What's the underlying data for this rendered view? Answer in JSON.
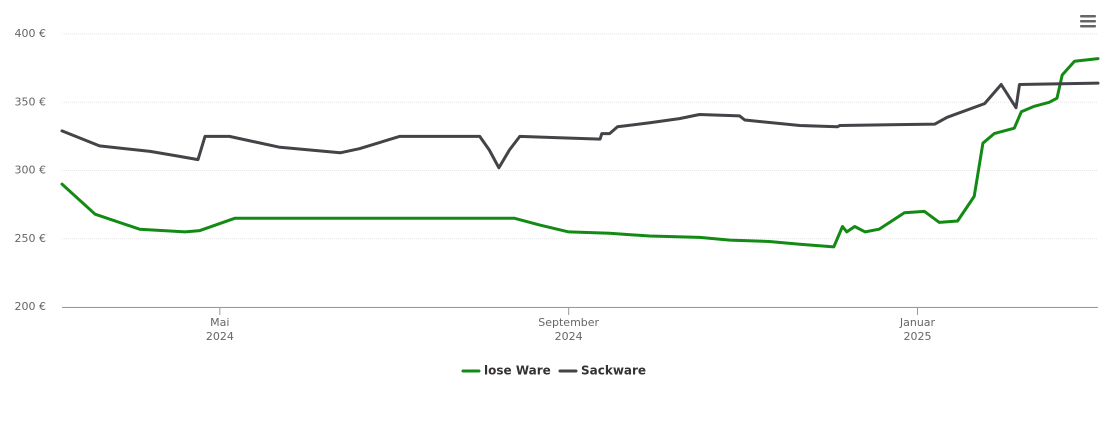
{
  "chart_data": {
    "type": "line",
    "xlim": [
      2.19,
      14.07
    ],
    "xticks": [
      {
        "value": 4,
        "label": "Mai\n2024"
      },
      {
        "value": 8,
        "label": "September\n2024"
      },
      {
        "value": 12,
        "label": "Januar\n2025"
      }
    ],
    "ylim": [
      200,
      400
    ],
    "yticks": [
      {
        "value": 200,
        "label": "200 €"
      },
      {
        "value": 250,
        "label": "250 €"
      },
      {
        "value": 300,
        "label": "300 €"
      },
      {
        "value": 350,
        "label": "350 €"
      },
      {
        "value": 400,
        "label": "400 €"
      }
    ],
    "grid": true,
    "legend": "bottom",
    "series": [
      {
        "name": "lose Ware",
        "color": "#138a13",
        "x": [
          2.19,
          2.57,
          3.08,
          3.6,
          3.77,
          4.17,
          4.92,
          7.38,
          7.67,
          8.0,
          8.47,
          8.93,
          9.5,
          9.85,
          10.3,
          10.65,
          11.04,
          11.14,
          11.19,
          11.28,
          11.4,
          11.56,
          11.85,
          12.08,
          12.25,
          12.46,
          12.65,
          12.75,
          12.88,
          13.11,
          13.19,
          13.34,
          13.51,
          13.6,
          13.66,
          13.8,
          14.07
        ],
        "values": [
          290,
          268,
          257,
          255,
          256,
          265,
          265,
          265,
          260,
          255,
          254,
          252,
          251,
          249,
          248,
          246,
          244,
          259,
          255,
          259,
          255,
          257,
          269,
          270,
          262,
          263,
          281,
          320,
          327,
          331,
          343,
          347,
          350,
          353,
          370,
          380,
          382
        ]
      },
      {
        "name": "Sackware",
        "color": "#434348",
        "x": [
          2.19,
          2.62,
          3.2,
          3.48,
          3.75,
          3.83,
          4.11,
          4.69,
          5.38,
          5.6,
          6.06,
          6.98,
          7.09,
          7.2,
          7.32,
          7.44,
          7.89,
          8.36,
          8.38,
          8.47,
          8.56,
          8.93,
          9.27,
          9.5,
          9.96,
          10.02,
          10.65,
          11.08,
          11.11,
          12.2,
          12.34,
          12.77,
          12.96,
          13.13,
          13.17,
          14.07
        ],
        "values": [
          329,
          318,
          314,
          311,
          308,
          325,
          325,
          317,
          313,
          316,
          325,
          325,
          315,
          302,
          315,
          325,
          324,
          323,
          327,
          327,
          332,
          335,
          338,
          341,
          340,
          337,
          333,
          332,
          333,
          334,
          339,
          349,
          363,
          346,
          363,
          364
        ]
      }
    ]
  }
}
